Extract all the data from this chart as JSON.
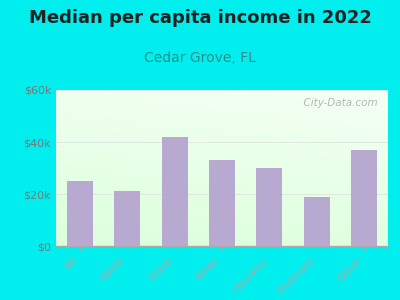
{
  "title": "Median per capita income in 2022",
  "subtitle": "Cedar Grove, FL",
  "categories": [
    "All",
    "White",
    "Black",
    "Asian",
    "Hispanic",
    "Multirace",
    "Other"
  ],
  "values": [
    25000,
    21000,
    42000,
    33000,
    30000,
    19000,
    37000
  ],
  "bar_color": "#b8a9d0",
  "title_fontsize": 13,
  "subtitle_fontsize": 10,
  "subtitle_color": "#2e8b8b",
  "title_color": "#222222",
  "background_color": "#00eeee",
  "ylim": [
    0,
    60000
  ],
  "yticks": [
    0,
    20000,
    40000,
    60000
  ],
  "ytick_labels": [
    "$0",
    "$20k",
    "$40k",
    "$60k"
  ],
  "watermark": "  City-Data.com",
  "tick_color": "#777777",
  "axis_color": "#aaaaaa",
  "plot_bg_topleft": "#dff5df",
  "plot_bg_topright": "#f5fffa",
  "plot_bg_bottomleft": "#e8fce8",
  "plot_bg_bottomright": "#f0fff0"
}
